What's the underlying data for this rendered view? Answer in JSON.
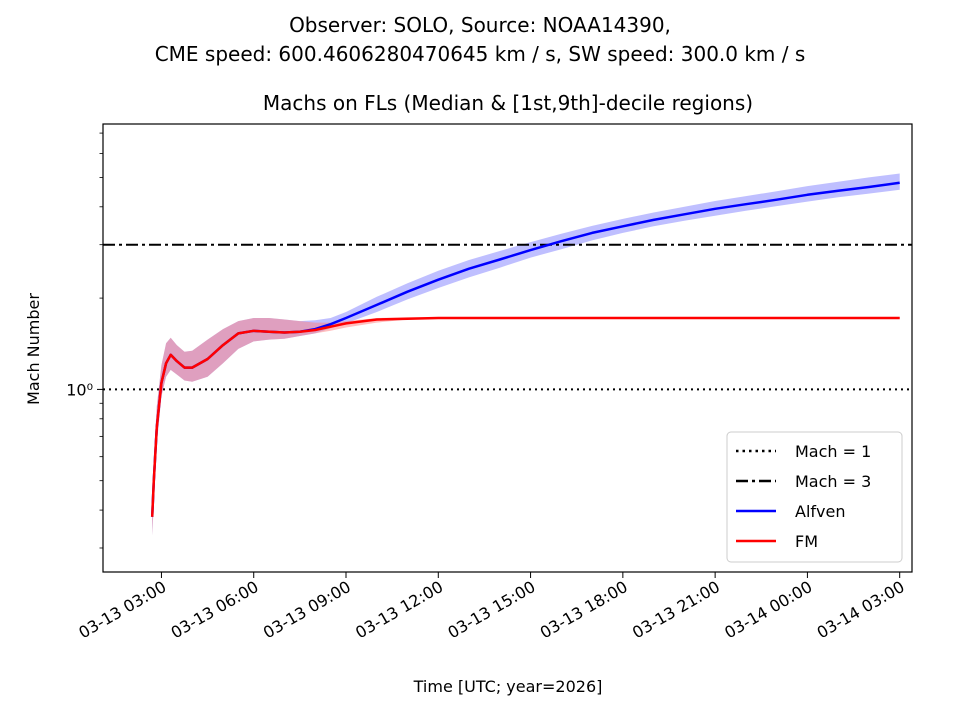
{
  "chart_data": {
    "type": "line",
    "suptitle": [
      "Observer: SOLO, Source: NOAA14390,",
      "CME speed: 600.4606280470645 km / s, SW speed: 300.0 km / s"
    ],
    "title": "Machs on FLs (Median & [1st,9th]-decile regions)",
    "xlabel": "Time [UTC; year=2026]",
    "ylabel": "Mach Number",
    "yscale": "log",
    "ylim": [
      0.25,
      7.5
    ],
    "xlim_hours": [
      1.1,
      27.4
    ],
    "x_unit": "hours since 2026-03-13 00:00 UTC",
    "xticks": {
      "hours": [
        3,
        6,
        9,
        12,
        15,
        18,
        21,
        24,
        27
      ],
      "labels": [
        "03-13 03:00",
        "03-13 06:00",
        "03-13 09:00",
        "03-13 12:00",
        "03-13 15:00",
        "03-13 18:00",
        "03-13 21:00",
        "03-14 00:00",
        "03-14 03:00"
      ]
    },
    "yticks": {
      "values": [
        1
      ],
      "labels": [
        "10⁰"
      ]
    },
    "hlines": [
      {
        "name": "Mach = 1",
        "y": 1,
        "style": "dotted",
        "color": "#000000"
      },
      {
        "name": "Mach = 3",
        "y": 3,
        "style": "dashdot",
        "color": "#000000"
      }
    ],
    "legend": {
      "position": "lower-right",
      "entries": [
        "Mach = 1",
        "Mach = 3",
        "Alfven",
        "FM"
      ]
    },
    "series": [
      {
        "name": "Alfven",
        "color": "#0000ff",
        "band_color": "#8080ff",
        "x": [
          2.7,
          2.75,
          2.85,
          3.0,
          3.15,
          3.3,
          3.5,
          3.75,
          4.0,
          4.5,
          5.0,
          5.5,
          6.0,
          6.5,
          7.0,
          7.5,
          8.0,
          8.5,
          9.0,
          10.0,
          11.0,
          12.0,
          13.0,
          14.0,
          15.0,
          16.0,
          17.0,
          18.0,
          19.0,
          20.0,
          21.0,
          22.0,
          23.0,
          24.0,
          25.0,
          26.0,
          27.0
        ],
        "median": [
          0.38,
          0.5,
          0.75,
          1.05,
          1.22,
          1.3,
          1.24,
          1.18,
          1.18,
          1.26,
          1.4,
          1.53,
          1.56,
          1.55,
          1.54,
          1.55,
          1.58,
          1.64,
          1.72,
          1.9,
          2.1,
          2.3,
          2.5,
          2.68,
          2.88,
          3.08,
          3.28,
          3.45,
          3.62,
          3.78,
          3.94,
          4.08,
          4.22,
          4.38,
          4.52,
          4.65,
          4.8
        ],
        "lower": [
          0.33,
          0.42,
          0.66,
          0.95,
          1.1,
          1.16,
          1.12,
          1.07,
          1.06,
          1.1,
          1.22,
          1.36,
          1.44,
          1.46,
          1.47,
          1.5,
          1.53,
          1.59,
          1.65,
          1.8,
          1.98,
          2.16,
          2.34,
          2.52,
          2.72,
          2.9,
          3.1,
          3.28,
          3.45,
          3.6,
          3.74,
          3.88,
          4.02,
          4.16,
          4.3,
          4.42,
          4.55
        ],
        "upper": [
          0.43,
          0.6,
          0.88,
          1.2,
          1.42,
          1.48,
          1.4,
          1.33,
          1.34,
          1.46,
          1.58,
          1.68,
          1.72,
          1.72,
          1.7,
          1.68,
          1.69,
          1.72,
          1.8,
          2.02,
          2.24,
          2.46,
          2.67,
          2.86,
          3.06,
          3.26,
          3.46,
          3.65,
          3.83,
          4.0,
          4.18,
          4.34,
          4.5,
          4.68,
          4.84,
          5.0,
          5.15
        ]
      },
      {
        "name": "FM",
        "color": "#ff0000",
        "band_color": "#ff8080",
        "x": [
          2.7,
          2.75,
          2.85,
          3.0,
          3.15,
          3.3,
          3.5,
          3.75,
          4.0,
          4.5,
          5.0,
          5.5,
          6.0,
          6.5,
          7.0,
          7.5,
          8.0,
          8.5,
          9.0,
          10.0,
          11.0,
          12.0,
          13.0,
          14.0,
          15.0,
          16.0,
          17.0,
          18.0,
          19.0,
          20.0,
          21.0,
          22.0,
          23.0,
          24.0,
          25.0,
          26.0,
          27.0
        ],
        "median": [
          0.38,
          0.5,
          0.75,
          1.05,
          1.22,
          1.3,
          1.24,
          1.18,
          1.18,
          1.26,
          1.4,
          1.53,
          1.56,
          1.55,
          1.54,
          1.55,
          1.57,
          1.61,
          1.65,
          1.7,
          1.71,
          1.72,
          1.72,
          1.72,
          1.72,
          1.72,
          1.72,
          1.72,
          1.72,
          1.72,
          1.72,
          1.72,
          1.72,
          1.72,
          1.72,
          1.72,
          1.72
        ],
        "lower": [
          0.33,
          0.42,
          0.66,
          0.95,
          1.1,
          1.16,
          1.12,
          1.07,
          1.06,
          1.1,
          1.22,
          1.36,
          1.44,
          1.46,
          1.47,
          1.5,
          1.53,
          1.56,
          1.6,
          1.66,
          1.7,
          1.71,
          1.71,
          1.71,
          1.71,
          1.71,
          1.71,
          1.71,
          1.71,
          1.71,
          1.71,
          1.71,
          1.71,
          1.71,
          1.71,
          1.71,
          1.71
        ],
        "upper": [
          0.43,
          0.6,
          0.88,
          1.2,
          1.42,
          1.48,
          1.4,
          1.33,
          1.34,
          1.46,
          1.58,
          1.68,
          1.72,
          1.72,
          1.7,
          1.68,
          1.66,
          1.66,
          1.68,
          1.72,
          1.73,
          1.73,
          1.73,
          1.73,
          1.73,
          1.73,
          1.73,
          1.73,
          1.73,
          1.73,
          1.73,
          1.73,
          1.73,
          1.73,
          1.73,
          1.73,
          1.73
        ]
      }
    ]
  }
}
